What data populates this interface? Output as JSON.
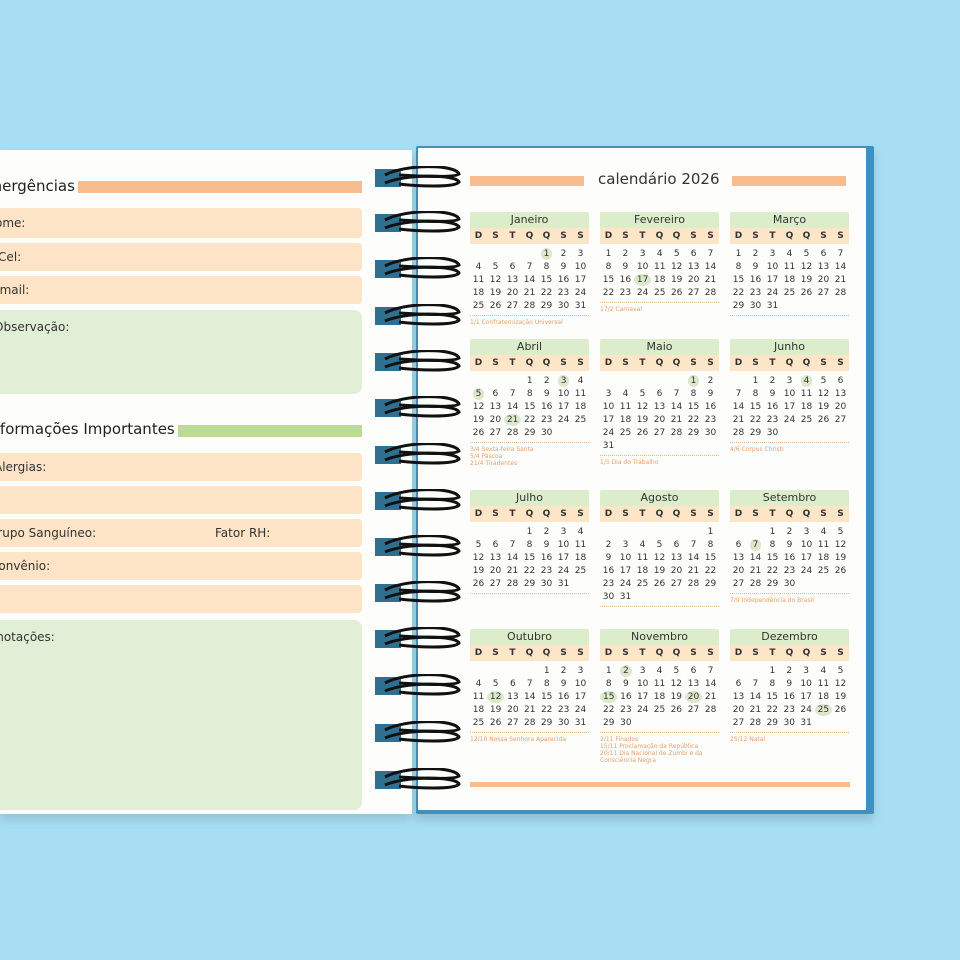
{
  "left_page": {
    "emergency_heading": "Emergências",
    "fields": {
      "name": "Nome:",
      "phone": "Tel/Cel:",
      "email": "Email:",
      "notes": "Observação:"
    },
    "info_heading": "Informações Importantes",
    "info": {
      "allergies": "Alergias:",
      "blood_type": "Grupo Sanguíneo:",
      "rh": "Fator RH:",
      "insurance": "Convênio:",
      "annotations": "Anotações:"
    }
  },
  "right_page": {
    "title": "calendário 2026",
    "weekdays": [
      "D",
      "S",
      "T",
      "Q",
      "Q",
      "S",
      "S"
    ],
    "months": [
      {
        "name": "Janeiro",
        "start": 4,
        "days": 31,
        "highlight": [
          1
        ],
        "holidays": [
          "1/1 Confraternização Universal"
        ]
      },
      {
        "name": "Fevereiro",
        "start": 0,
        "days": 28,
        "highlight": [
          17
        ],
        "holidays": [
          "17/2 Carnaval"
        ]
      },
      {
        "name": "Março",
        "start": 0,
        "days": 31,
        "highlight": [],
        "holidays": []
      },
      {
        "name": "Abril",
        "start": 3,
        "days": 30,
        "highlight": [
          3,
          5,
          21
        ],
        "holidays": [
          "3/4 Sexta-feira Santa",
          "5/4 Páscoa",
          "21/4 Tiradentes"
        ]
      },
      {
        "name": "Maio",
        "start": 5,
        "days": 31,
        "highlight": [
          1
        ],
        "holidays": [
          "1/5 Dia do Trabalho"
        ]
      },
      {
        "name": "Junho",
        "start": 1,
        "days": 30,
        "highlight": [
          4
        ],
        "holidays": [
          "4/6 Corpus Christi"
        ]
      },
      {
        "name": "Julho",
        "start": 3,
        "days": 31,
        "highlight": [],
        "holidays": []
      },
      {
        "name": "Agosto",
        "start": 6,
        "days": 31,
        "highlight": [],
        "holidays": []
      },
      {
        "name": "Setembro",
        "start": 2,
        "days": 30,
        "highlight": [
          7
        ],
        "holidays": [
          "7/9 Independência do Brasil"
        ]
      },
      {
        "name": "Outubro",
        "start": 4,
        "days": 31,
        "highlight": [
          12
        ],
        "holidays": [
          "12/10 Nossa Senhora Aparecida"
        ]
      },
      {
        "name": "Novembro",
        "start": 0,
        "days": 30,
        "highlight": [
          2,
          15,
          20
        ],
        "holidays": [
          "2/11 Finados",
          "15/11 Proclamação da República",
          "20/11 Dia Nacional de Zumbi e da Consciência Negra"
        ]
      },
      {
        "name": "Dezembro",
        "start": 2,
        "days": 31,
        "highlight": [
          25
        ],
        "holidays": [
          "25/12 Natal"
        ]
      }
    ]
  },
  "colors": {
    "background": "#a8def4",
    "orange": "#f8bd8e",
    "peach": "#fde4c6",
    "green": "#bcdb98",
    "light_green": "#e2efd7",
    "cover": "#3f8fbf"
  }
}
